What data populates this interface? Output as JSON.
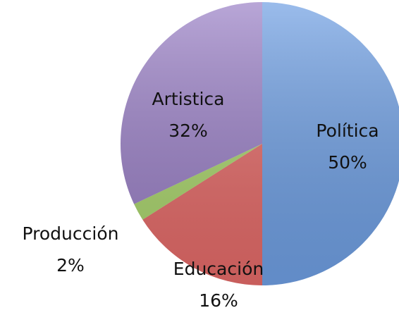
{
  "chart_data": {
    "type": "pie",
    "categories": [
      "Política",
      "Educación",
      "Producción",
      "Artistica"
    ],
    "values": [
      50,
      16,
      2,
      32
    ],
    "value_labels": [
      "50%",
      "16%",
      "2%",
      "32%"
    ],
    "colors": [
      "#6f9fe3",
      "#e46a68",
      "#a9d46c",
      "#9a80c6"
    ]
  }
}
